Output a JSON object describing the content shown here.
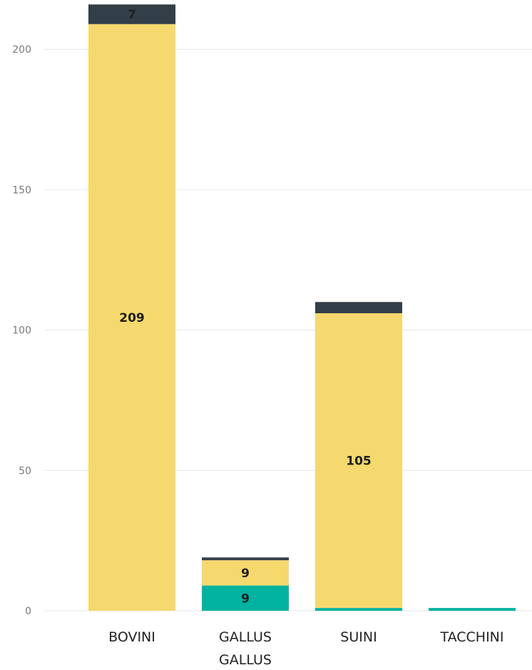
{
  "chart_data": {
    "type": "bar",
    "stacked": true,
    "categories": [
      "BOVINI",
      "GALLUS GALLUS",
      "SUINI",
      "TACCHINI"
    ],
    "series": [
      {
        "values": [
          0,
          9,
          1,
          1
        ],
        "color": "#00b3a0"
      },
      {
        "values": [
          209,
          9,
          105,
          0
        ],
        "color": "#f5d96e"
      },
      {
        "values": [
          7,
          1,
          4,
          0
        ],
        "color": "#333f48"
      }
    ],
    "data_labels": [
      [
        null,
        "9",
        null,
        null
      ],
      [
        "209",
        "9",
        "105",
        null
      ],
      [
        "7",
        null,
        null,
        null
      ]
    ],
    "y_ticks": [
      "0",
      "50",
      "100",
      "150",
      "200"
    ],
    "ylim": [
      0,
      220
    ],
    "grid": true,
    "title": "",
    "xlabel": "",
    "ylabel": ""
  }
}
